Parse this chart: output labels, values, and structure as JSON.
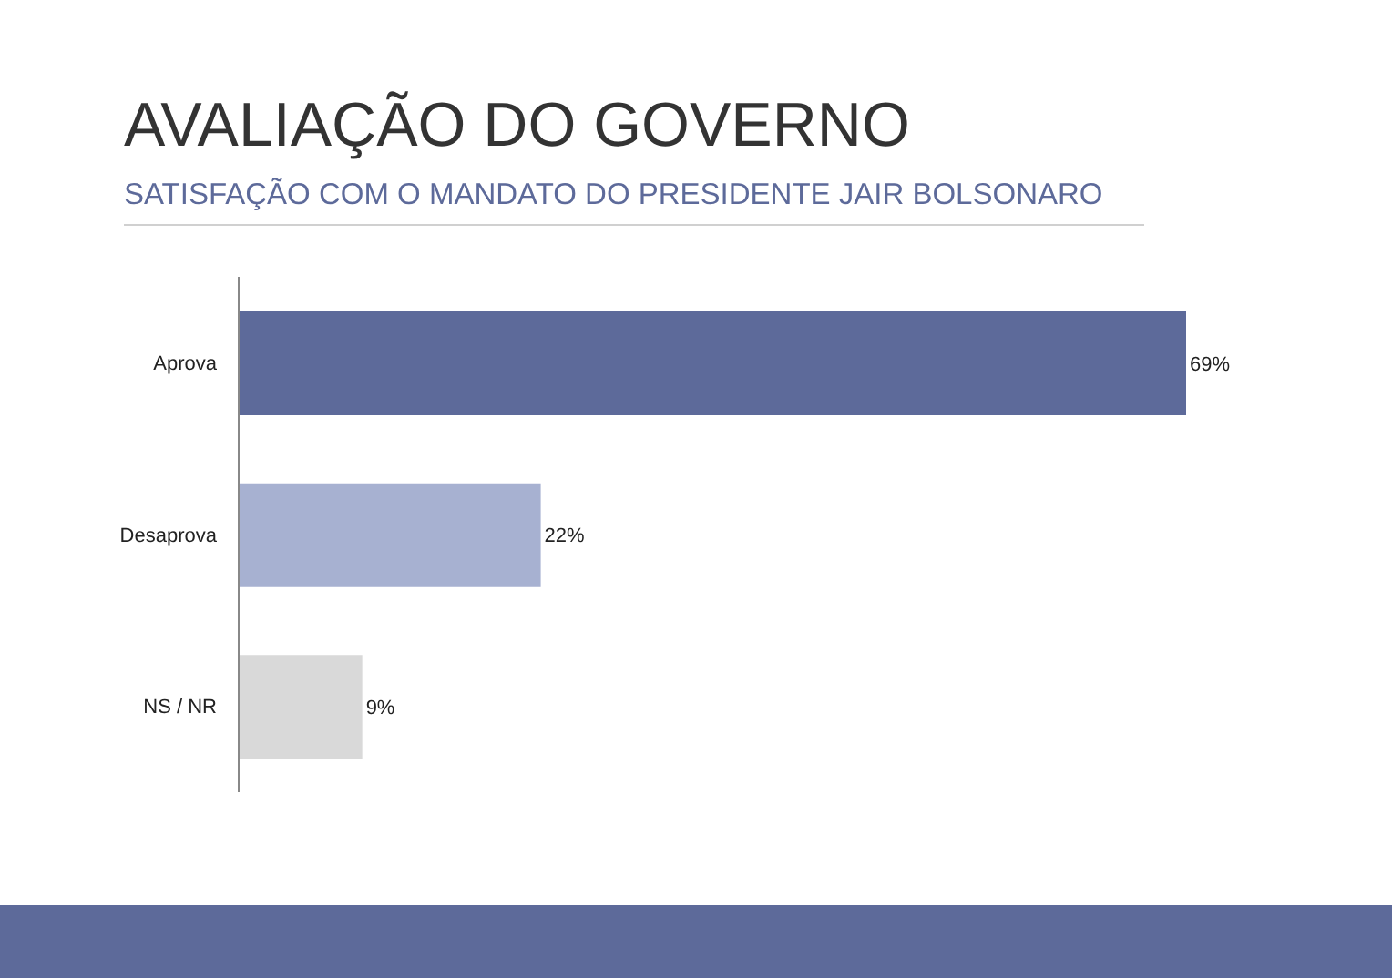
{
  "chart_data": {
    "type": "bar",
    "orientation": "horizontal",
    "title": "AVALIAÇÃO DO GOVERNO",
    "subtitle": "SATISFAÇÃO COM O MANDATO DO PRESIDENTE JAIR BOLSONARO",
    "categories": [
      "Aprova",
      "Desaprova",
      "NS / NR"
    ],
    "values": [
      69,
      22,
      9
    ],
    "colors": [
      "#5d6a9a",
      "#a7b1d1",
      "#d9d9d9"
    ],
    "value_labels": [
      "69%",
      "22%",
      "9%"
    ],
    "relative": false,
    "grid": false,
    "legend": false
  }
}
